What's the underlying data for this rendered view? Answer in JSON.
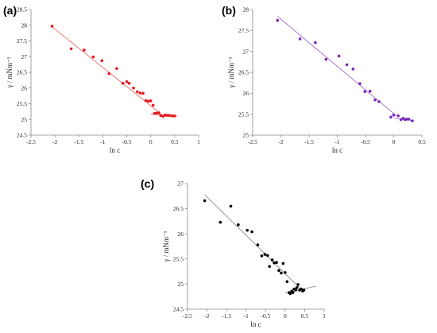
{
  "chart_data": [
    {
      "type": "scatter",
      "panel_label": "(a)",
      "xlabel": "ln c",
      "ylabel": "γ / mNm⁻¹",
      "xlim": [
        -2.5,
        1
      ],
      "ylim": [
        24.5,
        28.5
      ],
      "xticks": [
        "-2.5",
        "-2",
        "-1.5",
        "-1",
        "-0.5",
        "0",
        "0.5",
        "1"
      ],
      "yticks": [
        "24.5",
        "25",
        "25.5",
        "26",
        "26.5",
        "27",
        "27.5",
        "28",
        "28.5"
      ],
      "grid": false,
      "legend": "none",
      "color": "#e31a1c",
      "points": {
        "x": [
          -2.06,
          -1.66,
          -1.39,
          -1.2,
          -1.02,
          -0.87,
          -0.71,
          -0.58,
          -0.5,
          -0.45,
          -0.36,
          -0.28,
          -0.22,
          -0.16,
          -0.1,
          -0.05,
          0.0,
          0.05,
          0.08,
          0.12,
          0.17,
          0.21,
          0.26,
          0.3,
          0.33,
          0.37,
          0.41,
          0.46,
          0.5
        ],
        "y": [
          27.97,
          27.25,
          27.21,
          26.99,
          26.87,
          26.46,
          26.62,
          26.15,
          26.2,
          26.15,
          26.0,
          25.88,
          25.84,
          25.83,
          25.6,
          25.58,
          25.59,
          25.45,
          25.19,
          25.2,
          25.21,
          25.12,
          25.1,
          25.14,
          25.13,
          25.13,
          25.12,
          25.11,
          25.11
        ]
      },
      "fit_lines": [
        {
          "x": [
            -2.06,
            0.25
          ],
          "y": [
            27.95,
            25.13
          ]
        },
        {
          "x": [
            0.0,
            0.55
          ],
          "y": [
            25.17,
            25.1
          ]
        }
      ]
    },
    {
      "type": "scatter",
      "panel_label": "(b)",
      "xlabel": "ln c",
      "ylabel": "γ / mNm⁻¹",
      "xlim": [
        -2.5,
        0.5
      ],
      "ylim": [
        25,
        28
      ],
      "xticks": [
        "-2.5",
        "-2",
        "-1.5",
        "-1",
        "-0.5",
        "0",
        "0.5"
      ],
      "yticks": [
        "25",
        "25.5",
        "26",
        "26.5",
        "27",
        "27.5",
        "28"
      ],
      "grid": false,
      "legend": "none",
      "color": "#7a28b8",
      "points": {
        "x": [
          -2.06,
          -1.66,
          -1.39,
          -1.2,
          -0.97,
          -0.83,
          -0.72,
          -0.6,
          -0.51,
          -0.42,
          -0.33,
          -0.26,
          -0.05,
          0.0,
          0.08,
          0.13,
          0.17,
          0.2,
          0.23,
          0.27,
          0.33
        ],
        "y": [
          27.74,
          27.3,
          27.21,
          26.81,
          26.89,
          26.68,
          26.58,
          26.23,
          26.04,
          26.05,
          25.84,
          25.8,
          25.43,
          25.48,
          25.46,
          25.37,
          25.4,
          25.37,
          25.38,
          25.38,
          25.34
        ]
      },
      "fit_lines": [
        {
          "x": [
            -2.06,
            0.05
          ],
          "y": [
            27.84,
            25.46
          ]
        },
        {
          "x": [
            0.0,
            0.33
          ],
          "y": [
            25.4,
            25.35
          ]
        }
      ]
    },
    {
      "type": "scatter",
      "panel_label": "(c)",
      "xlabel": "ln c",
      "ylabel": "γ / mNm⁻¹",
      "xlim": [
        -2.5,
        1
      ],
      "ylim": [
        24.5,
        27
      ],
      "xticks": [
        "-2.5",
        "-2",
        "-1.5",
        "-1",
        "-0.5",
        "0",
        "0.5",
        "1"
      ],
      "yticks": [
        "24.5",
        "25",
        "25.5",
        "26",
        "26.5",
        "27"
      ],
      "grid": false,
      "legend": "none",
      "color": "#000000",
      "points": {
        "x": [
          -2.06,
          -1.66,
          -1.39,
          -1.2,
          -0.97,
          -0.85,
          -0.7,
          -0.6,
          -0.52,
          -0.45,
          -0.4,
          -0.33,
          -0.28,
          -0.22,
          -0.16,
          -0.1,
          -0.05,
          0.0,
          0.05,
          0.1,
          0.13,
          0.17,
          0.2,
          0.23,
          0.27,
          0.3,
          0.33,
          0.37,
          0.41,
          0.45,
          0.48
        ],
        "y": [
          26.66,
          26.23,
          26.55,
          26.18,
          26.07,
          26.04,
          25.78,
          25.56,
          25.59,
          25.57,
          25.35,
          25.48,
          25.42,
          25.43,
          25.27,
          25.22,
          25.41,
          25.23,
          25.05,
          24.83,
          24.81,
          24.86,
          24.83,
          24.9,
          24.88,
          24.93,
          24.99,
          24.88,
          24.9,
          24.86,
          24.88
        ]
      },
      "fit_lines": [
        {
          "x": [
            -2.06,
            0.43
          ],
          "y": [
            26.78,
            24.88
          ]
        },
        {
          "x": [
            0.0,
            0.8
          ],
          "y": [
            24.82,
            24.96
          ]
        }
      ]
    }
  ]
}
